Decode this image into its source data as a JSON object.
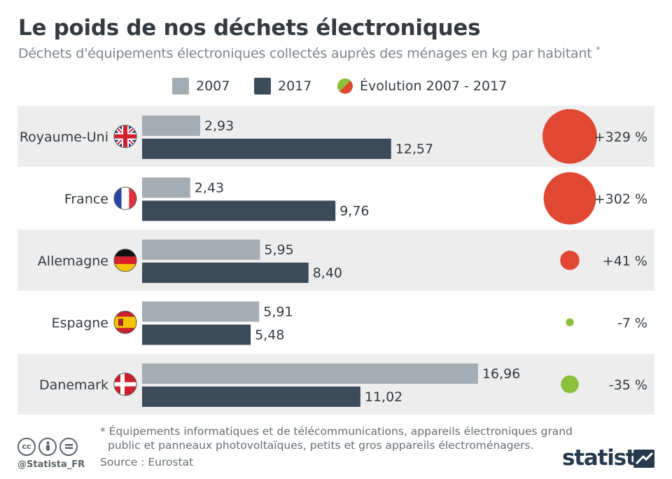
{
  "title": "Le poids de nos déchets électroniques",
  "subtitle": "Déchets d'équipements électroniques collectés auprès des ménages en kg par habitant",
  "subtitle_marker": "*",
  "legend": {
    "s2007": "2007",
    "s2017": "2017",
    "evolution": "Évolution 2007 - 2017"
  },
  "colors": {
    "bar_2007": "#a5adb4",
    "bar_2017": "#3c4b5a",
    "increase": "#e04833",
    "decrease": "#8cc03a",
    "row_band": "#ededed",
    "text": "#333b40"
  },
  "chart_data": {
    "type": "bar",
    "orientation": "horizontal",
    "categories": [
      "Royaume-Uni",
      "France",
      "Allemagne",
      "Espagne",
      "Danemark"
    ],
    "series": [
      {
        "name": "2007",
        "values": [
          2.93,
          2.43,
          5.95,
          5.91,
          16.96
        ],
        "labels": [
          "2,93",
          "2,43",
          "5,95",
          "5,91",
          "16,96"
        ]
      },
      {
        "name": "2017",
        "values": [
          12.57,
          9.76,
          8.4,
          5.48,
          11.02
        ],
        "labels": [
          "12,57",
          "9,76",
          "8,40",
          "5,48",
          "11,02"
        ]
      }
    ],
    "evolution": {
      "name": "Évolution 2007 - 2017",
      "values": [
        329,
        302,
        41,
        -7,
        -35
      ],
      "labels": [
        "+329 %",
        "+302 %",
        "+41 %",
        "-7 %",
        "-35 %"
      ]
    },
    "flags": [
      "uk",
      "france",
      "germany",
      "spain",
      "denmark"
    ]
  },
  "footnote": {
    "line1": "* Équipements informatiques et de télécommunications, appareils électroniques grand",
    "line2": "public et panneaux photovoltaïques, petits et gros appareils électroménagers."
  },
  "source": "Source : Eurostat",
  "credits": {
    "handle": "@Statista_FR",
    "brand": "statista",
    "license_icons": [
      "cc-icon",
      "by-icon",
      "nd-icon"
    ]
  }
}
